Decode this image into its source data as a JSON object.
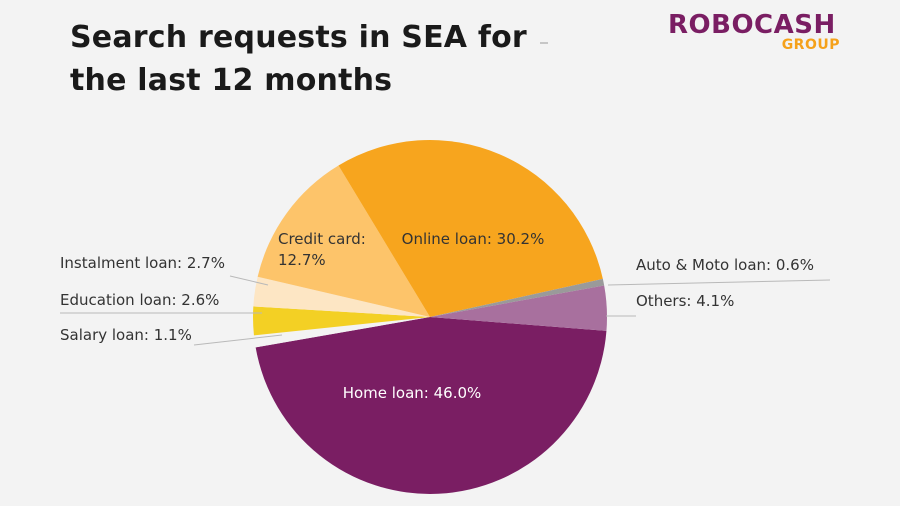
{
  "title": "Search requests in SEA for the last 12 months",
  "logo": {
    "main": "ROBOCASH",
    "sub": "GROUP"
  },
  "chart_data": {
    "type": "pie",
    "title": "Search requests in SEA for the last 12 months",
    "slices": [
      {
        "label": "Home loan: 46.0%",
        "value": 46.0,
        "color": "#7a1e63",
        "label_color": "#ffffff"
      },
      {
        "label": "Salary loan: 1.1%",
        "value": 1.1,
        "color": "#f3f3f3",
        "label_color": "#333333"
      },
      {
        "label": "Education loan: 2.6%",
        "value": 2.6,
        "color": "#f3d024",
        "label_color": "#333333"
      },
      {
        "label": "Instalment loan: 2.7%",
        "value": 2.7,
        "color": "#fde6c4",
        "label_color": "#333333"
      },
      {
        "label": "Credit card: 12.7%",
        "value": 12.7,
        "color": "#fdc46a",
        "label_color": "#333333"
      },
      {
        "label": "Online loan: 30.2%",
        "value": 30.2,
        "color": "#f7a51e",
        "label_color": "#333333"
      },
      {
        "label": "Auto & Moto loan: 0.6%",
        "value": 0.6,
        "color": "#9a9a9a",
        "label_color": "#333333"
      },
      {
        "label": "Others: 4.1%",
        "value": 4.1,
        "color": "#a8709e",
        "label_color": "#333333"
      }
    ]
  }
}
